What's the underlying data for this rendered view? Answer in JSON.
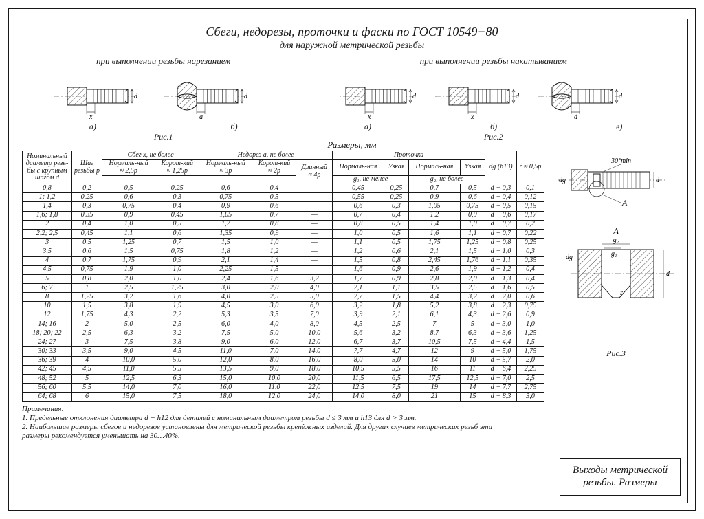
{
  "title": "Сбеги, недорезы, проточки и фаски по ГОСТ 10549−80",
  "subtitle": "для наружной метрической резьбы",
  "captions": {
    "left": "при выполнении резьбы нарезанием",
    "right": "при выполнении резьбы накатыванием",
    "fig1": "Рис.1",
    "fig2": "Рис.2",
    "fig3": "Рис.3",
    "a": "а)",
    "b": "б)",
    "v": "в)",
    "dims": "Размеры, мм",
    "angle": "30°min",
    "dimA": "A"
  },
  "dim_labels": {
    "x": "x",
    "d": "d",
    "a": "a",
    "dg": "dg",
    "g1": "g₁",
    "g2": "g₂",
    "r": "r"
  },
  "headers": {
    "col1": "Номинальный диаметр резь-бы с крупным шагом d",
    "col2": "Шаг резьбы p",
    "sbeg": "Сбег x, не более",
    "nedorez": "Недорез a, не более",
    "protochka": "Проточка",
    "norm": "Нормаль-ный",
    "short": "Корот-кий",
    "long": "Длинный",
    "approx25": "≈ 2,5p",
    "approx125": "≈ 1,25p",
    "approx3": "≈ 3p",
    "approx2": "≈ 2p",
    "approx4": "≈ 4p",
    "normN": "Нормаль-ная",
    "uzk": "Узкая",
    "g1": "g₁, не менее",
    "g2": "g₂, не более",
    "dg": "dg (h13)",
    "r": "r ≈ 0,5p"
  },
  "rows": [
    [
      "0,8",
      "0,2",
      "0,5",
      "0,25",
      "0,6",
      "0,4",
      "—",
      "0,45",
      "0,25",
      "0,7",
      "0,5",
      "d − 0,3",
      "0,1"
    ],
    [
      "1; 1,2",
      "0,25",
      "0,6",
      "0,3",
      "0,75",
      "0,5",
      "—",
      "0,55",
      "0,25",
      "0,9",
      "0,6",
      "d − 0,4",
      "0,12"
    ],
    [
      "1,4",
      "0,3",
      "0,75",
      "0,4",
      "0,9",
      "0,6",
      "—",
      "0,6",
      "0,3",
      "1,05",
      "0,75",
      "d − 0,5",
      "0,15"
    ],
    [
      "1,6; 1,8",
      "0,35",
      "0,9",
      "0,45",
      "1,05",
      "0,7",
      "—",
      "0,7",
      "0,4",
      "1,2",
      "0,9",
      "d − 0,6",
      "0,17"
    ],
    [
      "2",
      "0,4",
      "1,0",
      "0,5",
      "1,2",
      "0,8",
      "—",
      "0,8",
      "0,5",
      "1,4",
      "1,0",
      "d − 0,7",
      "0,2"
    ],
    [
      "2,2; 2,5",
      "0,45",
      "1,1",
      "0,6",
      "1,35",
      "0,9",
      "—",
      "1,0",
      "0,5",
      "1,6",
      "1,1",
      "d − 0,7",
      "0,22"
    ],
    [
      "3",
      "0,5",
      "1,25",
      "0,7",
      "1,5",
      "1,0",
      "—",
      "1,1",
      "0,5",
      "1,75",
      "1,25",
      "d − 0,8",
      "0,25"
    ],
    [
      "3,5",
      "0,6",
      "1,5",
      "0,75",
      "1,8",
      "1,2",
      "—",
      "1,2",
      "0,6",
      "2,1",
      "1,5",
      "d − 1,0",
      "0,3"
    ],
    [
      "4",
      "0,7",
      "1,75",
      "0,9",
      "2,1",
      "1,4",
      "—",
      "1,5",
      "0,8",
      "2,45",
      "1,76",
      "d − 1,1",
      "0,35"
    ],
    [
      "4,5",
      "0,75",
      "1,9",
      "1,0",
      "2,25",
      "1,5",
      "—",
      "1,6",
      "0,9",
      "2,6",
      "1,9",
      "d − 1,2",
      "0,4"
    ],
    [
      "5",
      "0,8",
      "2,0",
      "1,0",
      "2,4",
      "1,6",
      "3,2",
      "1,7",
      "0,9",
      "2,8",
      "2,0",
      "d − 1,3",
      "0,4"
    ],
    [
      "6; 7",
      "1",
      "2,5",
      "1,25",
      "3,0",
      "2,0",
      "4,0",
      "2,1",
      "1,1",
      "3,5",
      "2,5",
      "d − 1,6",
      "0,5"
    ],
    [
      "8",
      "1,25",
      "3,2",
      "1,6",
      "4,0",
      "2,5",
      "5,0",
      "2,7",
      "1,5",
      "4,4",
      "3,2",
      "d − 2,0",
      "0,6"
    ],
    [
      "10",
      "1,5",
      "3,8",
      "1,9",
      "4,5",
      "3,0",
      "6,0",
      "3,2",
      "1,8",
      "5,2",
      "3,8",
      "d − 2,3",
      "0,75"
    ],
    [
      "12",
      "1,75",
      "4,3",
      "2,2",
      "5,3",
      "3,5",
      "7,0",
      "3,9",
      "2,1",
      "6,1",
      "4,3",
      "d − 2,6",
      "0,9"
    ],
    [
      "14; 16",
      "2",
      "5,0",
      "2,5",
      "6,0",
      "4,0",
      "8,0",
      "4,5",
      "2,5",
      "7",
      "5",
      "d − 3,0",
      "1,0"
    ],
    [
      "18; 20; 22",
      "2,5",
      "6,3",
      "3,2",
      "7,5",
      "5,0",
      "10,0",
      "5,6",
      "3,2",
      "8,7",
      "6,3",
      "d − 3,6",
      "1,25"
    ],
    [
      "24; 27",
      "3",
      "7,5",
      "3,8",
      "9,0",
      "6,0",
      "12,0",
      "6,7",
      "3,7",
      "10,5",
      "7,5",
      "d − 4,4",
      "1,5"
    ],
    [
      "30; 33",
      "3,5",
      "9,0",
      "4,5",
      "11,0",
      "7,0",
      "14,0",
      "7,7",
      "4,7",
      "12",
      "9",
      "d − 5,0",
      "1,75"
    ],
    [
      "36; 39",
      "4",
      "10,0",
      "5,0",
      "12,0",
      "8,0",
      "16,0",
      "8,0",
      "5,0",
      "14",
      "10",
      "d − 5,7",
      "2,0"
    ],
    [
      "42; 45",
      "4,5",
      "11,0",
      "5,5",
      "13,5",
      "9,0",
      "18,0",
      "10,5",
      "5,5",
      "16",
      "11",
      "d − 6,4",
      "2,25"
    ],
    [
      "48; 52",
      "5",
      "12,5",
      "6,3",
      "15,0",
      "10,0",
      "20,0",
      "11,5",
      "6,5",
      "17,5",
      "12,5",
      "d − 7,0",
      "2,5"
    ],
    [
      "56; 60",
      "5,5",
      "14,0",
      "7,0",
      "16,0",
      "11,0",
      "22,0",
      "12,5",
      "7,5",
      "19",
      "14",
      "d − 7,7",
      "2,75"
    ],
    [
      "64; 68",
      "6",
      "15,0",
      "7,5",
      "18,0",
      "12,0",
      "24,0",
      "14,0",
      "8,0",
      "21",
      "15",
      "d − 8,3",
      "3,0"
    ]
  ],
  "notes": {
    "h": "Примечания:",
    "n1": "1. Предельные отклонения диаметра d − h12 для деталей с номинальным диаметром резьбы d ≤ 3 мм и h13 для d > 3 мм.",
    "n2": "2. Наибольшие размеры сбегов и недорезов установлены для метрической резьбы крепёжных изделий. Для других случаев метрических резьб эти размеры рекомендуется уменьшать на 30…40%."
  },
  "corner": {
    "l1": "Выходы метрической",
    "l2": "резьбы. Размеры"
  },
  "style": {
    "stroke": "#191818",
    "fill_hatch": "#ffffff"
  }
}
